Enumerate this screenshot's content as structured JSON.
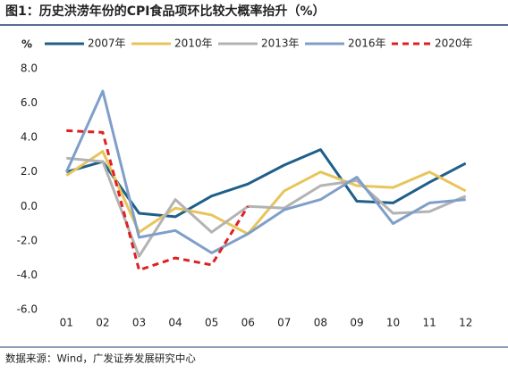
{
  "chart_data": {
    "type": "line",
    "title": "图1：历史洪涝年份的CPI食品项环比较大概率抬升（%）",
    "y_label": "%",
    "source": "数据来源：Wind，广发证券发展研究中心",
    "categories": [
      "01",
      "02",
      "03",
      "04",
      "05",
      "06",
      "07",
      "08",
      "09",
      "10",
      "11",
      "12"
    ],
    "series": [
      {
        "name": "2007年",
        "color": "#1f5f8b",
        "style": "solid",
        "values": [
          2.0,
          2.6,
          -0.4,
          -0.6,
          0.6,
          1.3,
          2.4,
          3.3,
          0.3,
          0.2,
          1.4,
          2.5
        ]
      },
      {
        "name": "2010年",
        "color": "#e8c55a",
        "style": "solid",
        "values": [
          1.8,
          3.2,
          -1.5,
          -0.1,
          -0.5,
          -1.6,
          0.9,
          2.0,
          1.2,
          1.1,
          2.0,
          0.9
        ]
      },
      {
        "name": "2013年",
        "color": "#b3b3b3",
        "style": "solid",
        "values": [
          2.8,
          2.6,
          -2.9,
          0.4,
          -1.5,
          0.0,
          -0.1,
          1.2,
          1.5,
          -0.4,
          -0.3,
          0.6
        ]
      },
      {
        "name": "2016年",
        "color": "#7f9fc9",
        "style": "solid",
        "values": [
          2.0,
          6.7,
          -1.8,
          -1.4,
          -2.7,
          -1.6,
          -0.2,
          0.4,
          1.7,
          -1.0,
          0.2,
          0.4
        ]
      },
      {
        "name": "2020年",
        "color": "#e02020",
        "style": "dashed",
        "values": [
          4.4,
          4.3,
          -3.7,
          -3.0,
          -3.4,
          0.0,
          null,
          null,
          null,
          null,
          null,
          null
        ]
      }
    ],
    "ylim": [
      -6,
      8
    ],
    "yticks": [
      {
        "value": -6,
        "label": "-6.0"
      },
      {
        "value": -4,
        "label": "-4.0"
      },
      {
        "value": -2,
        "label": "-2.0"
      },
      {
        "value": 0,
        "label": "0.0"
      },
      {
        "value": 2,
        "label": "2.0"
      },
      {
        "value": 4,
        "label": "4.0"
      },
      {
        "value": 6,
        "label": "6.0"
      },
      {
        "value": 8,
        "label": "8.0"
      }
    ],
    "grid": false,
    "legend": "top"
  }
}
